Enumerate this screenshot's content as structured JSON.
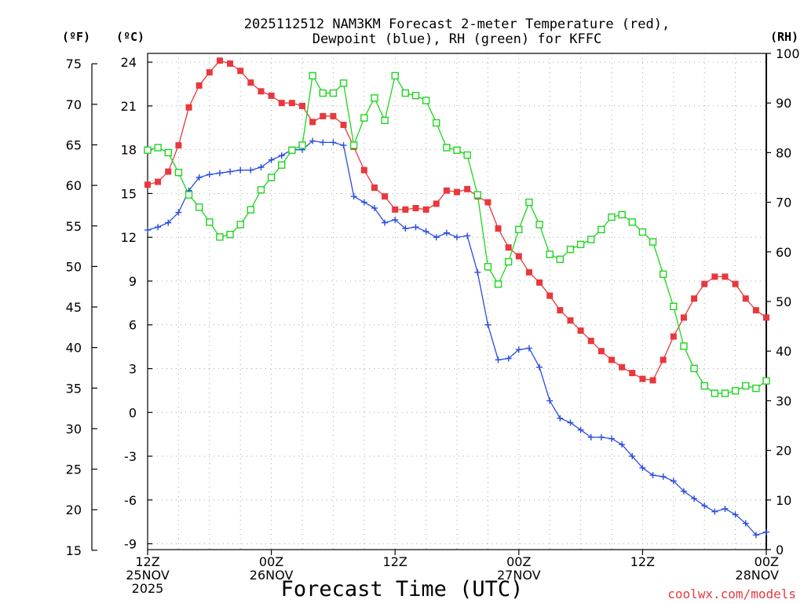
{
  "chart_data": {
    "type": "line",
    "title_line1": "2025112512 NAM3KM Forecast 2-meter Temperature (red),",
    "title_line2": "Dewpoint (blue), RH (green) for KFFC",
    "unit_f": "(ºF)",
    "unit_c": "(ºC)",
    "unit_rh": "(RH)",
    "xlabel": "Forecast Time (UTC)",
    "credit": "coolwx.com/models",
    "colors": {
      "temperature": "#e8383d",
      "dewpoint": "#2a4de0",
      "rh": "#1ed41e",
      "grid": "#a8a8a8"
    },
    "x_hours": [
      0,
      1,
      2,
      3,
      4,
      5,
      6,
      7,
      8,
      9,
      10,
      11,
      12,
      13,
      14,
      15,
      16,
      17,
      18,
      19,
      20,
      21,
      22,
      23,
      24,
      25,
      26,
      27,
      28,
      29,
      30,
      31,
      32,
      33,
      34,
      35,
      36,
      37,
      38,
      39,
      40,
      41,
      42,
      43,
      44,
      45,
      46,
      47,
      48,
      49,
      50,
      51,
      52,
      53,
      54,
      55,
      56,
      57,
      58,
      59,
      60
    ],
    "xlim_hours": [
      0,
      60
    ],
    "x_ticks": [
      {
        "hour": 0,
        "lines": [
          "12Z",
          "25NOV",
          "2025"
        ]
      },
      {
        "hour": 12,
        "lines": [
          "00Z",
          "26NOV"
        ]
      },
      {
        "hour": 24,
        "lines": [
          "12Z"
        ]
      },
      {
        "hour": 36,
        "lines": [
          "00Z",
          "27NOV"
        ]
      },
      {
        "hour": 48,
        "lines": [
          "12Z"
        ]
      },
      {
        "hour": 60,
        "lines": [
          "00Z",
          "28NOV"
        ]
      }
    ],
    "ylim_c": [
      -9.4,
      24.6
    ],
    "c_ticks": [
      24,
      21,
      18,
      15,
      12,
      9,
      6,
      3,
      0,
      -3,
      -6,
      -9
    ],
    "f_ticks": [
      75,
      70,
      65,
      60,
      55,
      50,
      45,
      40,
      35,
      30,
      25,
      20,
      15
    ],
    "rh_ticks": [
      100,
      90,
      80,
      70,
      60,
      50,
      40,
      30,
      20,
      10,
      0
    ],
    "series": [
      {
        "name": "Temperature (red)",
        "unit": "C",
        "marker": "filled-square",
        "values": [
          15.6,
          15.8,
          16.5,
          18.3,
          20.9,
          22.4,
          23.3,
          24.1,
          23.9,
          23.4,
          22.6,
          22.0,
          21.7,
          21.2,
          21.2,
          21.0,
          19.9,
          20.3,
          20.3,
          19.7,
          18.2,
          16.6,
          15.4,
          14.8,
          13.9,
          13.9,
          14.0,
          13.9,
          14.3,
          15.2,
          15.1,
          15.3,
          14.8,
          14.4,
          12.6,
          11.3,
          10.7,
          9.6,
          8.9,
          8.0,
          7.0,
          6.3,
          5.6,
          4.9,
          4.2,
          3.6,
          3.1,
          2.7,
          2.3,
          2.2,
          3.6,
          5.2,
          6.5,
          7.8,
          8.8,
          9.3,
          9.3,
          8.8,
          7.8,
          7.0,
          6.5
        ]
      },
      {
        "name": "Dewpoint (blue)",
        "unit": "C",
        "marker": "plus",
        "values": [
          12.5,
          12.7,
          13.0,
          13.7,
          15.2,
          16.1,
          16.3,
          16.4,
          16.5,
          16.6,
          16.6,
          16.8,
          17.3,
          17.6,
          18.0,
          18.0,
          18.6,
          18.5,
          18.5,
          18.3,
          14.8,
          14.4,
          14.0,
          13.0,
          13.2,
          12.6,
          12.7,
          12.4,
          12.0,
          12.3,
          12.0,
          12.1,
          9.6,
          6.0,
          3.6,
          3.7,
          4.3,
          4.4,
          3.1,
          0.8,
          -0.4,
          -0.7,
          -1.2,
          -1.7,
          -1.7,
          -1.8,
          -2.2,
          -3.0,
          -3.8,
          -4.3,
          -4.4,
          -4.7,
          -5.4,
          -5.9,
          -6.4,
          -6.8,
          -6.6,
          -7.0,
          -7.6,
          -8.4,
          -8.2
        ]
      },
      {
        "name": "RH (green)",
        "unit": "%",
        "marker": "open-square",
        "values": [
          80.5,
          81.0,
          80.0,
          76.0,
          71.5,
          69.0,
          66.0,
          63.0,
          63.5,
          65.5,
          68.5,
          72.5,
          75.0,
          77.5,
          80.5,
          81.5,
          95.5,
          92.0,
          92.0,
          94.0,
          81.5,
          87.0,
          91.0,
          86.5,
          95.5,
          92.0,
          91.5,
          90.5,
          86.0,
          81.0,
          80.5,
          79.5,
          71.5,
          57.0,
          53.5,
          58.0,
          64.5,
          70.0,
          65.5,
          59.5,
          58.5,
          60.5,
          61.5,
          62.5,
          64.5,
          67.0,
          67.5,
          66.0,
          64.0,
          62.0,
          55.5,
          49.0,
          41.0,
          36.5,
          33.0,
          31.5,
          31.5,
          32.0,
          33.0,
          32.5,
          34.0
        ]
      }
    ]
  }
}
